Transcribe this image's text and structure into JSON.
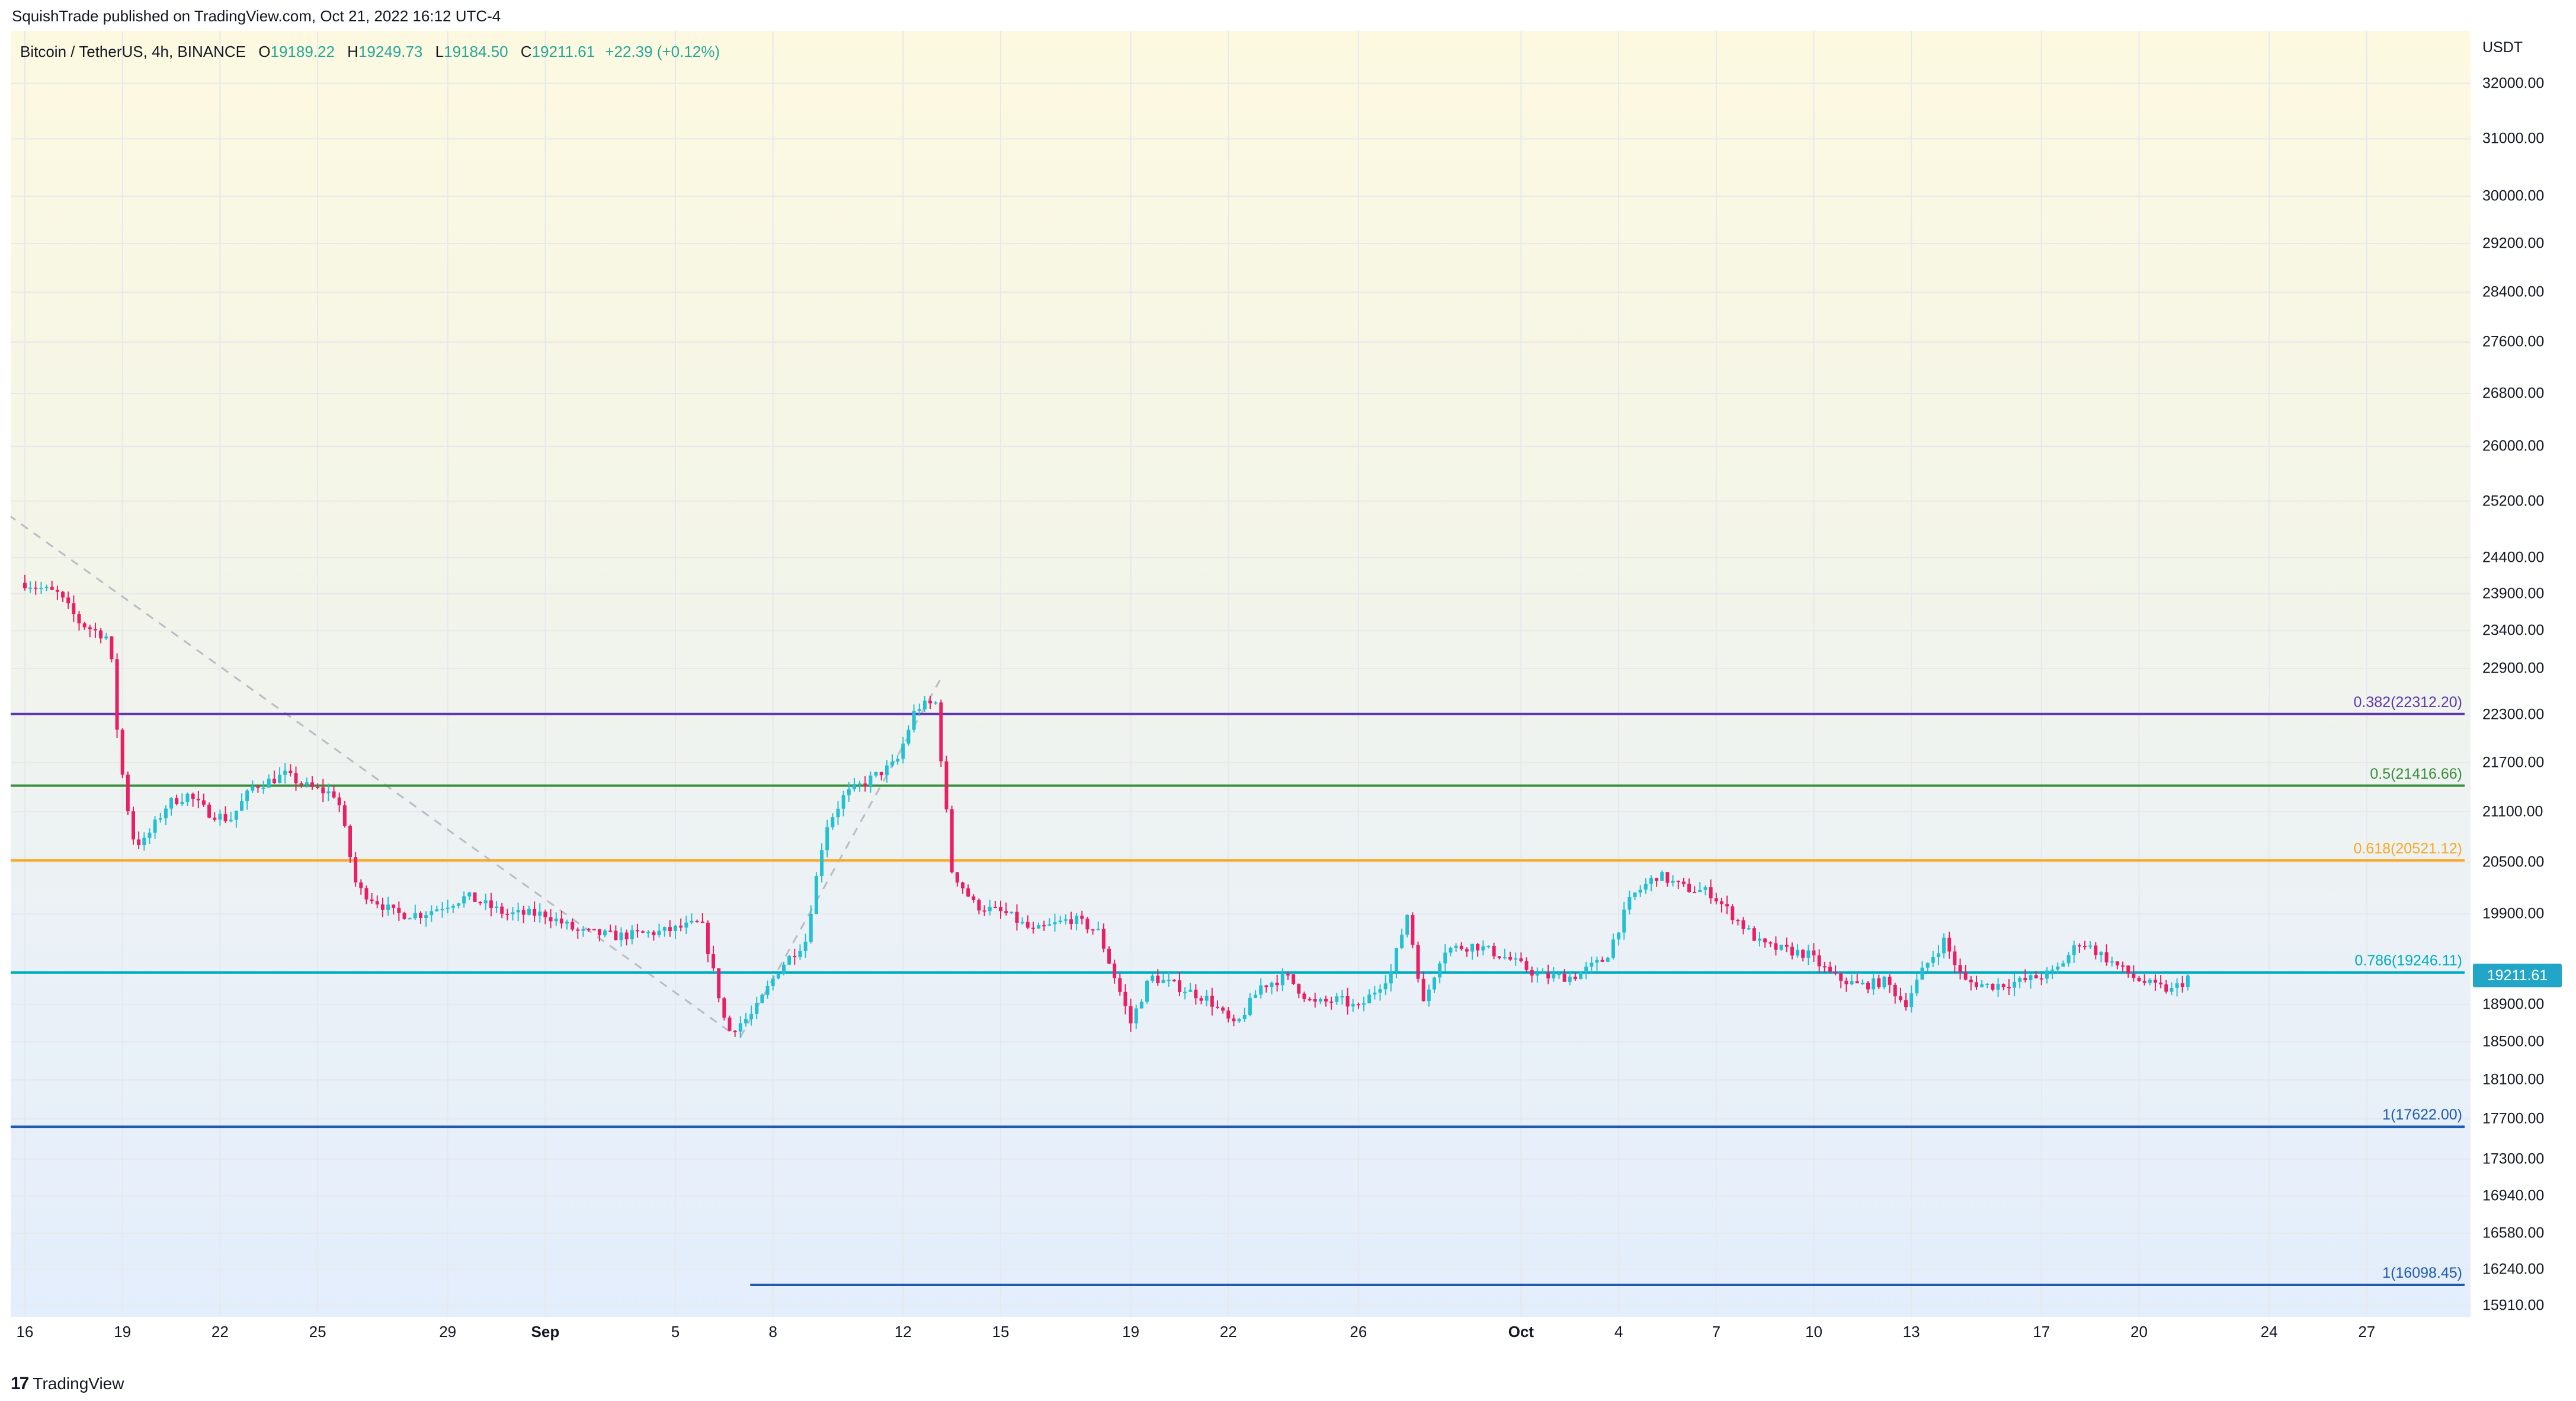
{
  "header": {
    "published": "SquishTrade published on TradingView.com, Oct 21, 2022 16:12 UTC-4"
  },
  "legend": {
    "title": "Bitcoin / TetherUS, 4h, BINANCE",
    "o_key": "O",
    "o_val": "19189.22",
    "h_key": "H",
    "h_val": "19249.73",
    "l_key": "L",
    "l_val": "19184.50",
    "c_key": "C",
    "c_val": "19211.61",
    "change": "+22.39 (+0.12%)"
  },
  "price_axis": {
    "unit": "USDT",
    "current": "19211.61"
  },
  "footer": {
    "brand": "TradingView",
    "logo": "tv-logo-icon"
  },
  "colors": {
    "up": "#26a69a",
    "up_candle": "#22c0d2",
    "down": "#e91e63",
    "price_box": "#22a6c7"
  },
  "chart_data": {
    "type": "candlestick",
    "symbol": "Bitcoin / TetherUS",
    "timeframe": "4h",
    "exchange": "BINANCE",
    "y_scale": "log",
    "ylim": [
      15700,
      33200
    ],
    "y_ticks": [
      "32000.00",
      "31000.00",
      "30000.00",
      "29200.00",
      "28400.00",
      "27600.00",
      "26800.00",
      "26000.00",
      "25200.00",
      "24400.00",
      "23900.00",
      "23400.00",
      "22900.00",
      "22300.00",
      "21700.00",
      "21100.00",
      "20500.00",
      "19900.00",
      "18900.00",
      "18500.00",
      "18100.00",
      "17700.00",
      "17300.00",
      "16940.00",
      "16580.00",
      "16240.00",
      "15910.00"
    ],
    "x_ticks": [
      {
        "label": "16",
        "day": 0
      },
      {
        "label": "19",
        "day": 3
      },
      {
        "label": "22",
        "day": 6
      },
      {
        "label": "25",
        "day": 9
      },
      {
        "label": "29",
        "day": 13
      },
      {
        "label": "Sep",
        "day": 16,
        "bold": true
      },
      {
        "label": "5",
        "day": 20
      },
      {
        "label": "8",
        "day": 23
      },
      {
        "label": "12",
        "day": 27
      },
      {
        "label": "15",
        "day": 30
      },
      {
        "label": "19",
        "day": 34
      },
      {
        "label": "22",
        "day": 37
      },
      {
        "label": "26",
        "day": 41
      },
      {
        "label": "Oct",
        "day": 46,
        "bold": true
      },
      {
        "label": "4",
        "day": 49
      },
      {
        "label": "7",
        "day": 52
      },
      {
        "label": "10",
        "day": 55
      },
      {
        "label": "13",
        "day": 58
      },
      {
        "label": "17",
        "day": 62
      },
      {
        "label": "20",
        "day": 65
      },
      {
        "label": "24",
        "day": 69
      },
      {
        "label": "27",
        "day": 72
      }
    ],
    "fib_levels": [
      {
        "label": "0.382(22312.20)",
        "price": 22312.2,
        "color": "#5e35b1",
        "from_day": -0.5
      },
      {
        "label": "0.5(21416.66)",
        "price": 21416.66,
        "color": "#388e3c",
        "from_day": -0.5
      },
      {
        "label": "0.618(20521.12)",
        "price": 20521.12,
        "color": "#f9a825",
        "from_day": -0.5
      },
      {
        "label": "0.786(19246.11)",
        "price": 19246.11,
        "color": "#00acc1",
        "from_day": -0.5
      },
      {
        "label": "1(17622.00)",
        "price": 17622.0,
        "color": "#1e5bb0",
        "from_day": -0.5
      },
      {
        "label": "1(16098.45)",
        "price": 16098.45,
        "color": "#1e5bb0",
        "from_day": 22.3
      }
    ],
    "trend_lines": [
      {
        "points": [
          [
            -0.5,
            25000
          ],
          [
            21.7,
            18600
          ]
        ]
      },
      {
        "points": [
          [
            22.0,
            18550
          ],
          [
            28.2,
            22800
          ]
        ]
      }
    ],
    "anchors": [
      [
        0.0,
        24050
      ],
      [
        1.0,
        23900
      ],
      [
        1.7,
        23500
      ],
      [
        2.6,
        23300
      ],
      [
        2.9,
        21800
      ],
      [
        3.3,
        20800
      ],
      [
        3.6,
        20700
      ],
      [
        4.4,
        21200
      ],
      [
        5.0,
        21300
      ],
      [
        5.6,
        21100
      ],
      [
        6.3,
        21000
      ],
      [
        7.0,
        21400
      ],
      [
        8.0,
        21550
      ],
      [
        8.7,
        21400
      ],
      [
        9.6,
        21300
      ],
      [
        10.2,
        20200
      ],
      [
        11.4,
        19900
      ],
      [
        12.2,
        19900
      ],
      [
        13.6,
        20100
      ],
      [
        14.8,
        19900
      ],
      [
        16.0,
        19900
      ],
      [
        17.0,
        19700
      ],
      [
        18.2,
        19650
      ],
      [
        19.6,
        19700
      ],
      [
        20.8,
        19800
      ],
      [
        21.6,
        18600
      ],
      [
        22.4,
        18800
      ],
      [
        23.2,
        19300
      ],
      [
        24.0,
        19600
      ],
      [
        24.6,
        20900
      ],
      [
        25.2,
        21300
      ],
      [
        26.0,
        21500
      ],
      [
        26.8,
        21700
      ],
      [
        27.4,
        22400
      ],
      [
        28.0,
        22450
      ],
      [
        28.5,
        20400
      ],
      [
        29.2,
        20000
      ],
      [
        30.2,
        19900
      ],
      [
        31.0,
        19700
      ],
      [
        32.2,
        19850
      ],
      [
        33.0,
        19700
      ],
      [
        34.0,
        18700
      ],
      [
        34.6,
        19200
      ],
      [
        35.4,
        19100
      ],
      [
        36.4,
        18950
      ],
      [
        37.2,
        18650
      ],
      [
        38.0,
        19100
      ],
      [
        38.8,
        19200
      ],
      [
        39.6,
        18900
      ],
      [
        40.4,
        18950
      ],
      [
        41.0,
        18850
      ],
      [
        42.0,
        19250
      ],
      [
        42.5,
        19900
      ],
      [
        43.0,
        18900
      ],
      [
        43.6,
        19500
      ],
      [
        44.6,
        19550
      ],
      [
        45.6,
        19400
      ],
      [
        46.6,
        19200
      ],
      [
        47.6,
        19200
      ],
      [
        48.6,
        19400
      ],
      [
        49.4,
        20100
      ],
      [
        50.2,
        20350
      ],
      [
        51.0,
        20200
      ],
      [
        51.8,
        20150
      ],
      [
        52.6,
        19850
      ],
      [
        53.4,
        19550
      ],
      [
        54.0,
        19500
      ],
      [
        54.8,
        19450
      ],
      [
        55.6,
        19200
      ],
      [
        56.4,
        19100
      ],
      [
        57.2,
        19150
      ],
      [
        57.8,
        18900
      ],
      [
        58.4,
        19300
      ],
      [
        59.0,
        19600
      ],
      [
        59.6,
        19150
      ],
      [
        60.4,
        19100
      ],
      [
        61.4,
        19150
      ],
      [
        62.4,
        19250
      ],
      [
        63.2,
        19600
      ],
      [
        64.0,
        19400
      ],
      [
        64.8,
        19200
      ],
      [
        65.4,
        19100
      ],
      [
        66.0,
        19050
      ],
      [
        66.6,
        19211.61
      ]
    ]
  }
}
